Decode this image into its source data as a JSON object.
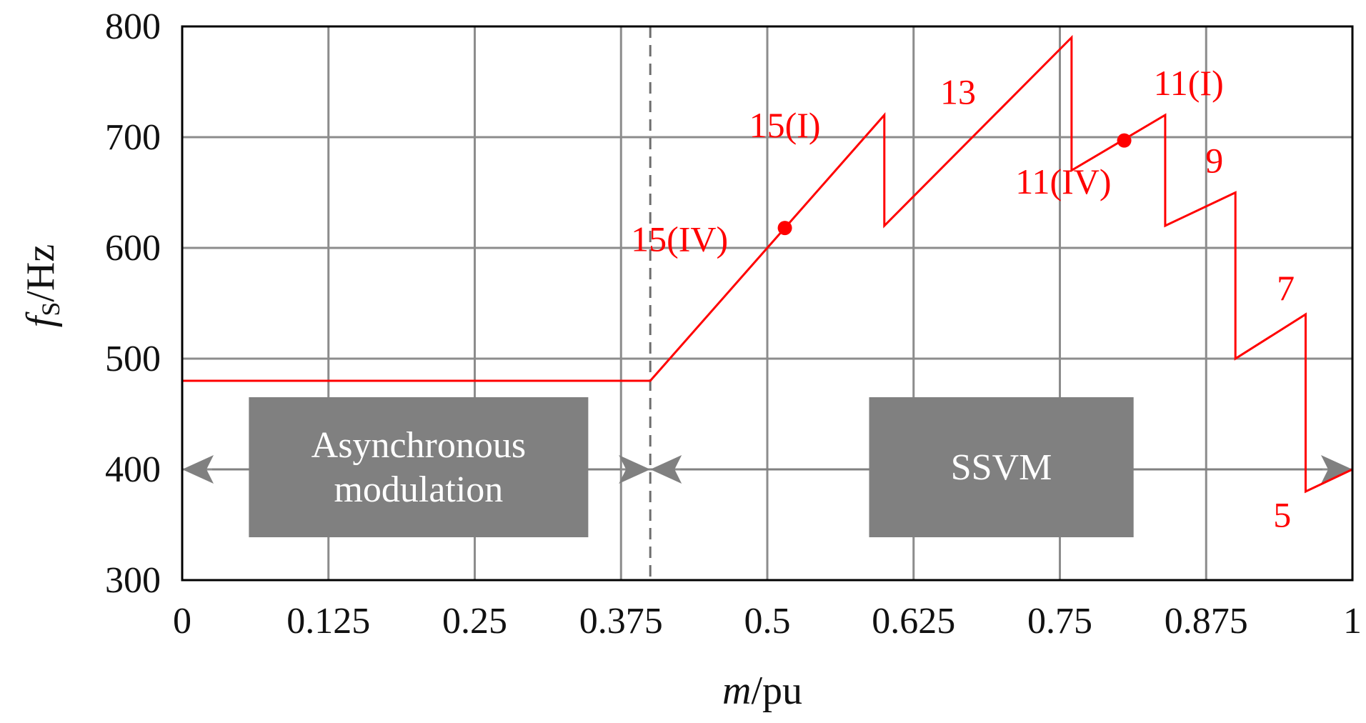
{
  "chart_data": {
    "type": "line",
    "xlabel_italic": "m",
    "xlabel_rest": "/pu",
    "ylabel_italic": "f",
    "ylabel_sub": "S",
    "ylabel_rest": "/Hz",
    "xlim": [
      0,
      1
    ],
    "ylim": [
      300,
      800
    ],
    "x_ticks": [
      "0",
      "0.125",
      "0.25",
      "0.375",
      "0.5",
      "0.625",
      "0.75",
      "0.875",
      "1"
    ],
    "y_ticks": [
      "300",
      "400",
      "500",
      "600",
      "700",
      "800"
    ],
    "grid": true,
    "series_color": "#ff0000",
    "series": [
      {
        "x": [
          0,
          0.4,
          0.6,
          0.6,
          0.76,
          0.76,
          0.84,
          0.84,
          0.9,
          0.9,
          0.96,
          0.96,
          1.0
        ],
        "y": [
          480,
          480,
          720,
          620,
          790,
          670,
          720,
          620,
          650,
          500,
          540,
          380,
          400
        ]
      }
    ],
    "markers": [
      {
        "x": 0.515,
        "y": 618
      },
      {
        "x": 0.805,
        "y": 697
      }
    ],
    "boundary_x": 0.4,
    "annotations": [
      {
        "text": "15(I)",
        "x": 0.515,
        "y": 700
      },
      {
        "text": "15(IV)",
        "x": 0.425,
        "y": 597
      },
      {
        "text": "13",
        "x": 0.663,
        "y": 730
      },
      {
        "text": "11(I)",
        "x": 0.86,
        "y": 738
      },
      {
        "text": "11(IV)",
        "x": 0.753,
        "y": 649
      },
      {
        "text": "9",
        "x": 0.882,
        "y": 668
      },
      {
        "text": "7",
        "x": 0.943,
        "y": 553
      },
      {
        "text": "5",
        "x": 0.94,
        "y": 348
      }
    ],
    "regions": [
      {
        "label_lines": [
          "Asynchronous",
          "modulation"
        ],
        "arrow_from": 0,
        "arrow_to": 0.4,
        "box_from": 0.057,
        "box_to": 0.347,
        "y": 400
      },
      {
        "label_lines": [
          "SSVM"
        ],
        "arrow_from": 0.4,
        "arrow_to": 1.0,
        "box_from": 0.587,
        "box_to": 0.813,
        "y": 400
      }
    ],
    "region_color": "#808080",
    "region_text_color": "#ffffff"
  }
}
